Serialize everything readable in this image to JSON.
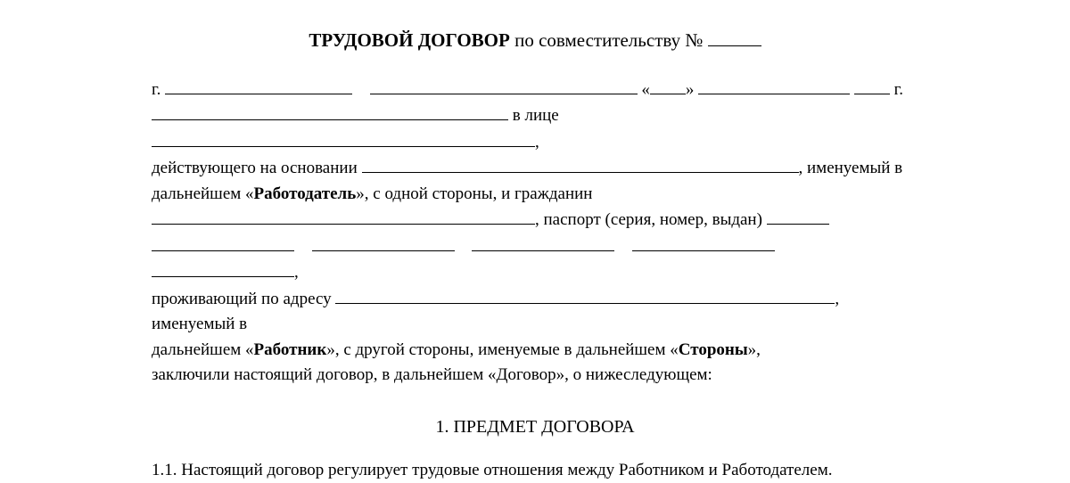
{
  "title": {
    "bold_part": "ТРУДОВОЙ ДОГОВОР",
    "rest": "по совместительству №"
  },
  "preamble": {
    "g_prefix": "г.",
    "quote_open": "«",
    "quote_close": "»",
    "g_suffix": "г.",
    "v_litse": "в лице",
    "line3_prefix": "действующего на основании",
    "line3_suffix": ", именуемый в",
    "line4": "дальнейшем «",
    "employer_bold": "Работодатель",
    "line4_suffix": "», с одной стороны, и гражданин",
    "passport": ", паспорт (серия, номер, выдан)",
    "address_prefix": "проживающий по адресу",
    "address_suffix": ", именуемый в",
    "line8_prefix": "дальнейшем «",
    "employee_bold": "Работник",
    "line8_mid": "», с другой стороны, именуемые в дальнейшем «",
    "parties_bold": "Стороны",
    "line8_suffix": "»,",
    "line9": "заключили настоящий договор, в дальнейшем «Договор», о нижеследующем:"
  },
  "section1": {
    "heading": "1. ПРЕДМЕТ ДОГОВОРА",
    "clause_1_1": "1.1. Настоящий договор регулирует трудовые отношения между Работником и Работодателем."
  },
  "blanks": {
    "title_num_w": 60,
    "city_w": 210,
    "org_w": 300,
    "day_w": 40,
    "month_w": 170,
    "year_w": 40,
    "org2_w": 400,
    "person_w": 430,
    "basis_w": 490,
    "citizen_w": 430,
    "passport_tail_w": 70,
    "passport_row_seg_w": 160,
    "address_w": 560
  }
}
